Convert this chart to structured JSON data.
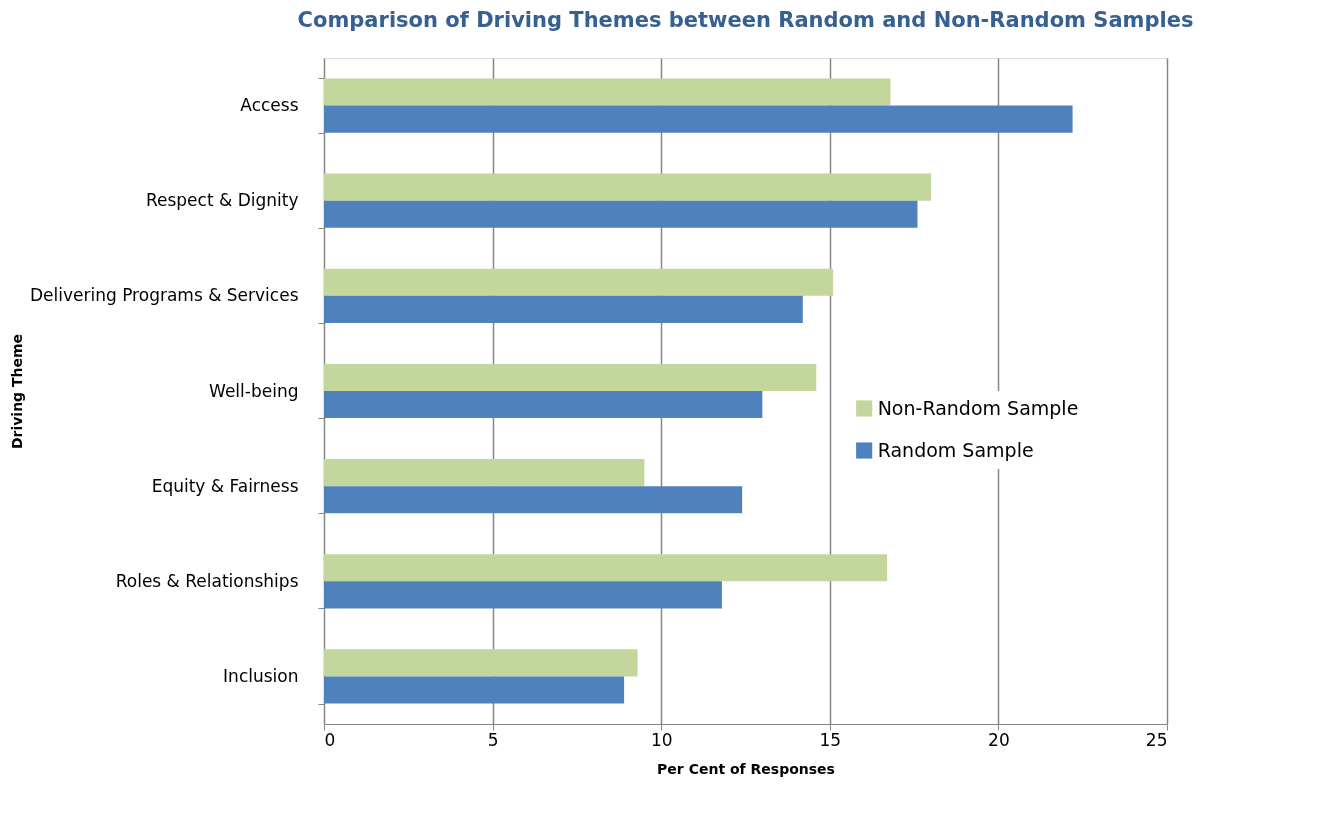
{
  "chart_data": {
    "type": "bar",
    "orientation": "horizontal",
    "title": "Comparison of Driving Themes between Random and Non-Random Samples",
    "xlabel": "Per Cent of Responses",
    "ylabel": "Driving Theme",
    "categories": [
      "Access",
      "Respect & Dignity",
      "Delivering Programs & Services",
      "Well-being",
      "Equity & Fairness",
      "Roles & Relationships",
      "Inclusion"
    ],
    "series": [
      {
        "name": "Non-Random Sample",
        "color": "#c3d69b",
        "values": [
          16.8,
          18.0,
          15.1,
          14.6,
          9.5,
          16.7,
          9.3
        ]
      },
      {
        "name": "Random Sample",
        "color": "#4f81bd",
        "values": [
          22.2,
          17.6,
          14.2,
          13.0,
          12.4,
          11.8,
          8.9
        ]
      }
    ],
    "xlim": [
      0,
      25
    ],
    "xticks": [
      0,
      5,
      10,
      15,
      20,
      25
    ],
    "grid": "x",
    "legend": "right"
  }
}
